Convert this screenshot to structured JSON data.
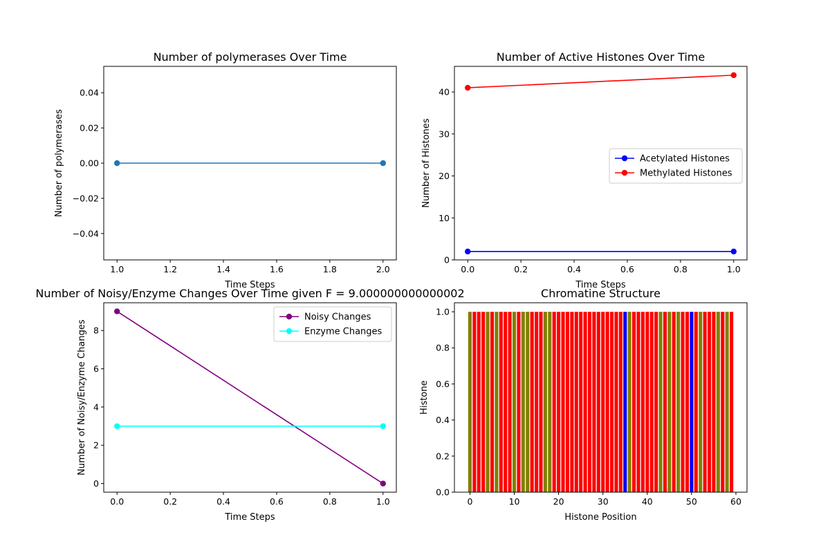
{
  "chart_data": [
    {
      "id": "polymerases",
      "type": "line",
      "title": "Number of polymerases Over Time",
      "xlabel": "Time Steps",
      "ylabel": "Number of polymerases",
      "xlim": [
        0.95,
        2.05
      ],
      "ylim": [
        -0.055,
        0.055
      ],
      "xticks": [
        1.0,
        1.2,
        1.4,
        1.6,
        1.8,
        2.0
      ],
      "xtick_labels": [
        "1.0",
        "1.2",
        "1.4",
        "1.6",
        "1.8",
        "2.0"
      ],
      "yticks": [
        -0.04,
        -0.02,
        0.0,
        0.02,
        0.04
      ],
      "ytick_labels": [
        "−0.04",
        "−0.02",
        "0.00",
        "0.02",
        "0.04"
      ],
      "legend": null,
      "series": [
        {
          "x": [
            1,
            2
          ],
          "y": [
            0,
            0
          ],
          "color": "#1f77b4"
        }
      ]
    },
    {
      "id": "histones",
      "type": "line",
      "title": "Number of Active Histones Over Time",
      "xlabel": "Time Steps",
      "ylabel": "Number of Histones",
      "xlim": [
        -0.05,
        1.05
      ],
      "ylim": [
        0,
        46.1
      ],
      "xticks": [
        0.0,
        0.2,
        0.4,
        0.6,
        0.8,
        1.0
      ],
      "xtick_labels": [
        "0.0",
        "0.2",
        "0.4",
        "0.6",
        "0.8",
        "1.0"
      ],
      "yticks": [
        0,
        10,
        20,
        30,
        40
      ],
      "ytick_labels": [
        "0",
        "10",
        "20",
        "30",
        "40"
      ],
      "legend": "center-right",
      "series": [
        {
          "name": "Acetylated Histones",
          "x": [
            0,
            1
          ],
          "y": [
            2,
            2
          ],
          "color": "#0000ff"
        },
        {
          "name": "Methylated Histones",
          "x": [
            0,
            1
          ],
          "y": [
            41,
            44
          ],
          "color": "#ff0000"
        }
      ]
    },
    {
      "id": "changes",
      "type": "line",
      "title": "Number of Noisy/Enzyme Changes Over Time given F = 9.000000000000002",
      "xlabel": "Time Steps",
      "ylabel": "Number of Noisy/Enzyme Changes",
      "xlim": [
        -0.05,
        1.05
      ],
      "ylim": [
        -0.45,
        9.45
      ],
      "xticks": [
        0.0,
        0.2,
        0.4,
        0.6,
        0.8,
        1.0
      ],
      "xtick_labels": [
        "0.0",
        "0.2",
        "0.4",
        "0.6",
        "0.8",
        "1.0"
      ],
      "yticks": [
        0,
        2,
        4,
        6,
        8
      ],
      "ytick_labels": [
        "0",
        "2",
        "4",
        "6",
        "8"
      ],
      "legend": "top-right",
      "series": [
        {
          "name": "Noisy Changes",
          "x": [
            0,
            1
          ],
          "y": [
            9,
            0
          ],
          "color": "#800080"
        },
        {
          "name": "Enzyme Changes",
          "x": [
            0,
            1
          ],
          "y": [
            3,
            3
          ],
          "color": "#00ffff"
        }
      ]
    },
    {
      "id": "chromatine",
      "type": "bar",
      "title": "Chromatine Structure",
      "xlabel": "Histone Position",
      "ylabel": "Histone",
      "xlim": [
        -3.5,
        62.5
      ],
      "ylim": [
        0,
        1.05
      ],
      "xticks": [
        0,
        10,
        20,
        30,
        40,
        50,
        60
      ],
      "xtick_labels": [
        "0",
        "10",
        "20",
        "30",
        "40",
        "50",
        "60"
      ],
      "yticks": [
        0.0,
        0.2,
        0.4,
        0.6,
        0.8,
        1.0
      ],
      "ytick_labels": [
        "0.0",
        "0.2",
        "0.4",
        "0.6",
        "0.8",
        "1.0"
      ],
      "legend": null,
      "palette": {
        "M": "#ff0000",
        "U": "#808000",
        "A": "#0000ff"
      },
      "bar_width": 0.8,
      "positions_start": 0,
      "states": [
        "U",
        "M",
        "M",
        "M",
        "U",
        "M",
        "U",
        "M",
        "M",
        "M",
        "U",
        "M",
        "U",
        "U",
        "M",
        "M",
        "M",
        "U",
        "U",
        "M",
        "M",
        "M",
        "M",
        "M",
        "M",
        "M",
        "M",
        "M",
        "M",
        "M",
        "M",
        "M",
        "M",
        "M",
        "M",
        "A",
        "U",
        "M",
        "M",
        "M",
        "M",
        "M",
        "M",
        "U",
        "M",
        "U",
        "M",
        "U",
        "M",
        "M",
        "A",
        "M",
        "U",
        "M",
        "M",
        "M",
        "U",
        "M",
        "U",
        "M"
      ],
      "values": [
        1,
        1,
        1,
        1,
        1,
        1,
        1,
        1,
        1,
        1,
        1,
        1,
        1,
        1,
        1,
        1,
        1,
        1,
        1,
        1,
        1,
        1,
        1,
        1,
        1,
        1,
        1,
        1,
        1,
        1,
        1,
        1,
        1,
        1,
        1,
        1,
        1,
        1,
        1,
        1,
        1,
        1,
        1,
        1,
        1,
        1,
        1,
        1,
        1,
        1,
        1,
        1,
        1,
        1,
        1,
        1,
        1,
        1,
        1,
        1
      ]
    }
  ]
}
